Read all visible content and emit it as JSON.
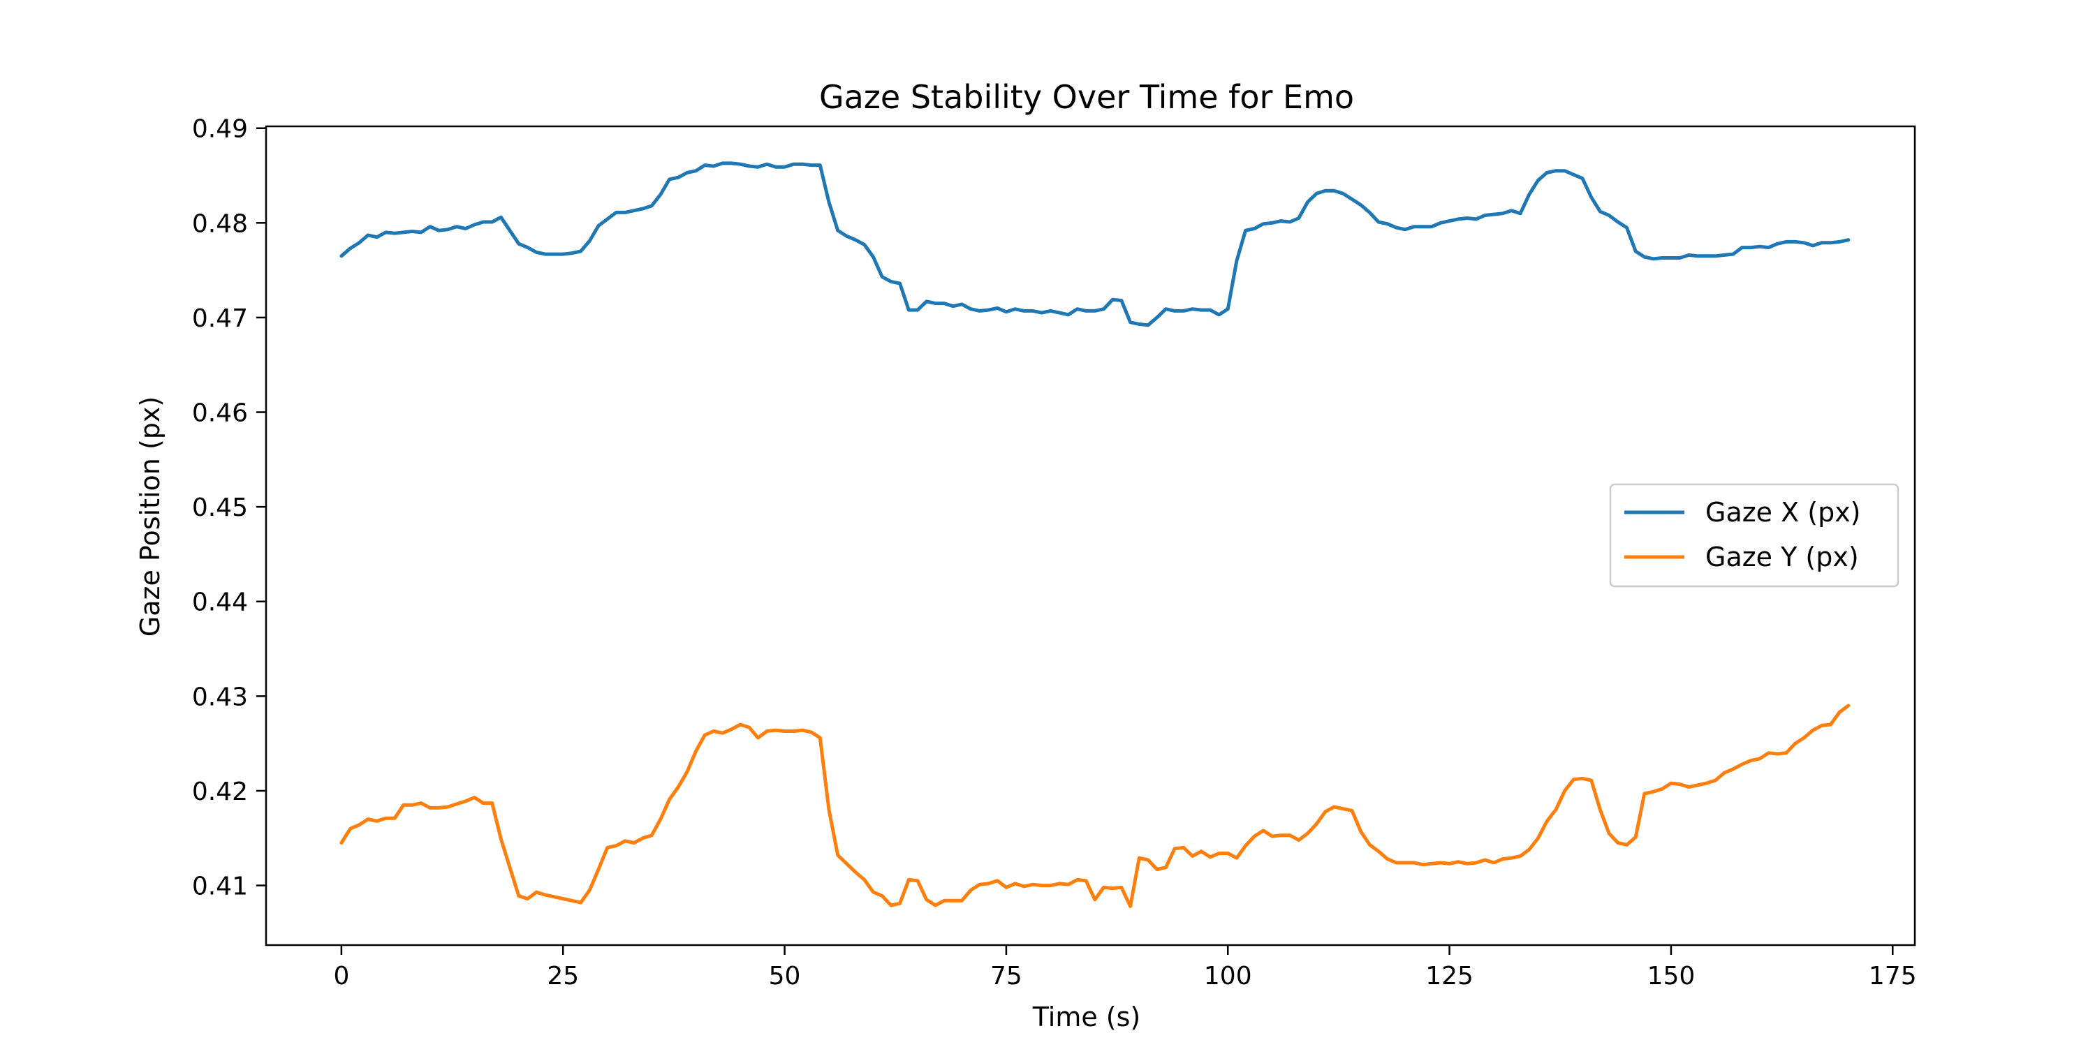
{
  "chart_data": {
    "type": "line",
    "title": "Gaze Stability Over Time for Emo",
    "xlabel": "Time (s)",
    "ylabel": "Gaze Position (px)",
    "xlim": [
      -8.5,
      177.5
    ],
    "ylim": [
      0.4037,
      0.4902
    ],
    "x_ticks": [
      0,
      25,
      50,
      75,
      100,
      125,
      150,
      175
    ],
    "y_ticks": [
      0.41,
      0.42,
      0.43,
      0.44,
      0.45,
      0.46,
      0.47,
      0.48,
      0.49
    ],
    "x_tick_labels": [
      "0",
      "25",
      "50",
      "75",
      "100",
      "125",
      "150",
      "175"
    ],
    "y_tick_labels": [
      "0.41",
      "0.42",
      "0.43",
      "0.44",
      "0.45",
      "0.46",
      "0.47",
      "0.48",
      "0.49"
    ],
    "grid": false,
    "legend_position": "center-right",
    "x_start": 0,
    "x_step": 1,
    "series": [
      {
        "name": "Gaze X (px)",
        "color": "#1f77b4",
        "values": [
          0.4765,
          0.4773,
          0.4779,
          0.4787,
          0.4785,
          0.479,
          0.4789,
          0.479,
          0.4791,
          0.479,
          0.4796,
          0.4792,
          0.4793,
          0.4796,
          0.4794,
          0.4798,
          0.4801,
          0.4801,
          0.4806,
          0.4792,
          0.4778,
          0.4774,
          0.4769,
          0.4767,
          0.4767,
          0.4767,
          0.4768,
          0.477,
          0.4781,
          0.4797,
          0.4804,
          0.4811,
          0.4811,
          0.4813,
          0.4815,
          0.4818,
          0.483,
          0.4846,
          0.4848,
          0.4853,
          0.4855,
          0.4861,
          0.486,
          0.4863,
          0.4863,
          0.4862,
          0.486,
          0.4859,
          0.4862,
          0.4859,
          0.4859,
          0.4862,
          0.4862,
          0.4861,
          0.4861,
          0.4822,
          0.4792,
          0.4786,
          0.4782,
          0.4777,
          0.4764,
          0.4743,
          0.4738,
          0.4736,
          0.4708,
          0.4708,
          0.4717,
          0.4715,
          0.4715,
          0.4712,
          0.4714,
          0.4709,
          0.4707,
          0.4708,
          0.471,
          0.4706,
          0.4709,
          0.4707,
          0.4707,
          0.4705,
          0.4707,
          0.4705,
          0.4703,
          0.4709,
          0.4707,
          0.4707,
          0.4709,
          0.4719,
          0.4718,
          0.4695,
          0.4693,
          0.4692,
          0.47,
          0.4709,
          0.4707,
          0.4707,
          0.4709,
          0.4708,
          0.4708,
          0.4703,
          0.4709,
          0.476,
          0.4792,
          0.4794,
          0.4799,
          0.48,
          0.4802,
          0.4801,
          0.4805,
          0.4822,
          0.4831,
          0.4834,
          0.4834,
          0.4831,
          0.4825,
          0.4819,
          0.4811,
          0.4801,
          0.4799,
          0.4795,
          0.4793,
          0.4796,
          0.4796,
          0.4796,
          0.48,
          0.4802,
          0.4804,
          0.4805,
          0.4804,
          0.4808,
          0.4809,
          0.481,
          0.4813,
          0.481,
          0.483,
          0.4845,
          0.4853,
          0.4855,
          0.4855,
          0.4851,
          0.4847,
          0.4827,
          0.4812,
          0.4808,
          0.4801,
          0.4795,
          0.477,
          0.4764,
          0.4762,
          0.4763,
          0.4763,
          0.4763,
          0.4766,
          0.4765,
          0.4765,
          0.4765,
          0.4766,
          0.4767,
          0.4774,
          0.4774,
          0.4775,
          0.4774,
          0.4778,
          0.478,
          0.478,
          0.4779,
          0.4776,
          0.4779,
          0.4779,
          0.478,
          0.4782
        ]
      },
      {
        "name": "Gaze Y (px)",
        "color": "#ff7f0e",
        "values": [
          0.4145,
          0.416,
          0.4164,
          0.417,
          0.4168,
          0.4171,
          0.4171,
          0.4185,
          0.4185,
          0.4187,
          0.4182,
          0.4182,
          0.4183,
          0.4186,
          0.4189,
          0.4193,
          0.4187,
          0.4187,
          0.4149,
          0.4119,
          0.4089,
          0.4086,
          0.4093,
          0.409,
          0.4088,
          0.4086,
          0.4084,
          0.4082,
          0.4095,
          0.4117,
          0.414,
          0.4142,
          0.4147,
          0.4145,
          0.415,
          0.4153,
          0.417,
          0.4191,
          0.4204,
          0.422,
          0.4242,
          0.4259,
          0.4263,
          0.4261,
          0.4265,
          0.427,
          0.4267,
          0.4256,
          0.4263,
          0.4264,
          0.4263,
          0.4263,
          0.4264,
          0.4262,
          0.4256,
          0.418,
          0.4132,
          0.4123,
          0.4114,
          0.4106,
          0.4093,
          0.4089,
          0.4079,
          0.4081,
          0.4106,
          0.4105,
          0.4085,
          0.4079,
          0.4084,
          0.4084,
          0.4084,
          0.4095,
          0.4101,
          0.4102,
          0.4105,
          0.4098,
          0.4102,
          0.4099,
          0.4101,
          0.41,
          0.41,
          0.4102,
          0.4101,
          0.4106,
          0.4105,
          0.4085,
          0.4098,
          0.4097,
          0.4098,
          0.4078,
          0.4129,
          0.4127,
          0.4117,
          0.4119,
          0.4139,
          0.414,
          0.4131,
          0.4136,
          0.413,
          0.4134,
          0.4134,
          0.4129,
          0.4142,
          0.4152,
          0.4158,
          0.4152,
          0.4153,
          0.4153,
          0.4148,
          0.4155,
          0.4165,
          0.4178,
          0.4183,
          0.4181,
          0.4179,
          0.4157,
          0.4143,
          0.4136,
          0.4128,
          0.4124,
          0.4124,
          0.4124,
          0.4122,
          0.4123,
          0.4124,
          0.4123,
          0.4125,
          0.4123,
          0.4124,
          0.4127,
          0.4124,
          0.4128,
          0.4129,
          0.4131,
          0.4138,
          0.415,
          0.4168,
          0.418,
          0.42,
          0.4212,
          0.4213,
          0.4211,
          0.418,
          0.4155,
          0.4145,
          0.4143,
          0.4151,
          0.4197,
          0.4199,
          0.4202,
          0.4208,
          0.4207,
          0.4204,
          0.4206,
          0.4208,
          0.4211,
          0.4219,
          0.4223,
          0.4228,
          0.4232,
          0.4234,
          0.424,
          0.4239,
          0.424,
          0.425,
          0.4256,
          0.4264,
          0.4269,
          0.427,
          0.4283,
          0.429
        ]
      }
    ]
  }
}
